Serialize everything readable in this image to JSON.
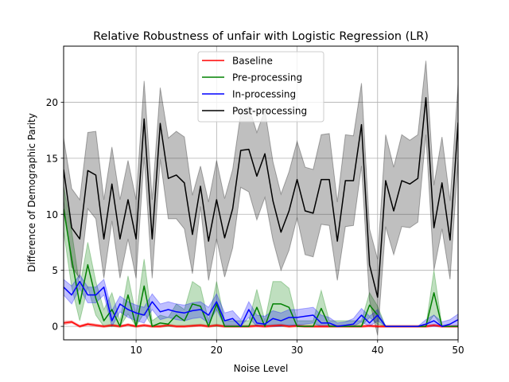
{
  "chart_data": {
    "type": "line",
    "title": "Relative Robustness of unfair with Logistic Regression (LR)",
    "xlabel": "Noise Level",
    "ylabel": "Difference of Demographic Parity",
    "xlim": [
      1,
      50
    ],
    "ylim": [
      -1.2,
      25
    ],
    "xticks": [
      10,
      20,
      30,
      40,
      50
    ],
    "yticks": [
      0,
      5,
      10,
      15,
      20
    ],
    "grid": true,
    "legend_position": "upper-center",
    "x": [
      1,
      2,
      3,
      4,
      5,
      6,
      7,
      8,
      9,
      10,
      11,
      12,
      13,
      14,
      15,
      16,
      17,
      18,
      19,
      20,
      21,
      22,
      23,
      24,
      25,
      26,
      27,
      28,
      29,
      30,
      31,
      32,
      33,
      34,
      35,
      36,
      37,
      38,
      39,
      40,
      41,
      42,
      43,
      44,
      45,
      46,
      47,
      48,
      49,
      50
    ],
    "series": [
      {
        "name": "Baseline",
        "color": "#ff0000",
        "values": [
          0.3,
          0.4,
          0.0,
          0.2,
          0.1,
          0.0,
          0.1,
          0.0,
          0.15,
          0.0,
          0.1,
          0.0,
          0.0,
          0.1,
          0.0,
          0.0,
          0.05,
          0.1,
          0.0,
          0.1,
          0.0,
          0.0,
          0.0,
          0.0,
          0.05,
          0.0,
          0.05,
          0.1,
          0.0,
          0.05,
          0.0,
          0.0,
          0.0,
          0.0,
          0.0,
          0.0,
          0.0,
          0.0,
          0.05,
          0.0,
          0.0,
          0.0,
          0.0,
          0.0,
          0.0,
          0.0,
          0.1,
          0.0,
          0.0,
          0.0
        ],
        "upper": [
          0.45,
          0.5,
          0.1,
          0.3,
          0.2,
          0.1,
          0.2,
          0.1,
          0.25,
          0.1,
          0.2,
          0.1,
          0.1,
          0.2,
          0.1,
          0.1,
          0.15,
          0.2,
          0.1,
          0.2,
          0.1,
          0.1,
          0.1,
          0.1,
          0.15,
          0.1,
          0.15,
          0.2,
          0.1,
          0.15,
          0.1,
          0.1,
          0.1,
          0.1,
          0.1,
          0.1,
          0.1,
          0.1,
          0.15,
          0.1,
          0.1,
          0.1,
          0.1,
          0.1,
          0.1,
          0.1,
          0.2,
          0.1,
          0.1,
          0.1
        ],
        "lower": [
          0.15,
          0.3,
          -0.1,
          0.1,
          0.0,
          -0.1,
          0.0,
          -0.1,
          0.05,
          -0.1,
          0.0,
          -0.1,
          -0.1,
          0.0,
          -0.1,
          -0.1,
          -0.05,
          0.0,
          -0.1,
          0.0,
          -0.1,
          -0.1,
          -0.1,
          -0.1,
          -0.05,
          -0.1,
          -0.05,
          0.0,
          -0.1,
          -0.05,
          -0.1,
          -0.1,
          -0.1,
          -0.1,
          -0.1,
          -0.1,
          -0.1,
          -0.1,
          -0.05,
          -0.1,
          -0.1,
          -0.1,
          -0.1,
          -0.1,
          -0.1,
          -0.1,
          0.0,
          -0.1,
          -0.1,
          -0.1
        ]
      },
      {
        "name": "Pre-processing",
        "color": "#008000",
        "values": [
          10.5,
          6.0,
          2.0,
          5.5,
          2.5,
          0.5,
          1.5,
          0.0,
          2.8,
          0.0,
          3.6,
          0.0,
          0.3,
          0.2,
          1.0,
          0.5,
          2.0,
          1.8,
          0.0,
          2.0,
          0.0,
          0.0,
          0.0,
          0.0,
          1.7,
          0.0,
          2.0,
          2.0,
          1.7,
          0.0,
          0.0,
          0.0,
          1.6,
          0.0,
          0.0,
          0.0,
          0.0,
          0.0,
          1.9,
          1.0,
          0.0,
          0.0,
          0.0,
          0.0,
          0.0,
          0.0,
          3.0,
          0.0,
          0.0,
          0.0
        ],
        "upper": [
          12.5,
          8.5,
          3.5,
          7.5,
          4.0,
          1.5,
          3.0,
          0.5,
          4.5,
          1.0,
          6.0,
          0.5,
          1.0,
          0.8,
          2.0,
          1.5,
          4.0,
          3.5,
          0.5,
          4.0,
          0.5,
          0.5,
          0.5,
          0.5,
          3.3,
          0.5,
          4.0,
          4.0,
          3.4,
          0.5,
          0.5,
          0.5,
          3.2,
          0.5,
          0.5,
          0.5,
          0.5,
          0.5,
          3.0,
          1.8,
          0.0,
          0.0,
          0.0,
          0.0,
          0.0,
          0.0,
          5.0,
          0.0,
          0.0,
          0.0
        ],
        "lower": [
          8.5,
          3.5,
          0.5,
          3.5,
          1.0,
          0.0,
          0.0,
          0.0,
          1.1,
          0.0,
          1.2,
          0.0,
          0.0,
          0.0,
          0.0,
          0.0,
          0.0,
          0.1,
          0.0,
          0.0,
          0.0,
          0.0,
          0.0,
          0.0,
          0.1,
          0.0,
          0.0,
          0.0,
          0.0,
          0.0,
          0.0,
          0.0,
          0.0,
          0.0,
          0.0,
          0.0,
          0.0,
          0.0,
          0.8,
          0.2,
          0.0,
          0.0,
          0.0,
          0.0,
          0.0,
          0.0,
          1.0,
          0.0,
          0.0,
          0.0
        ]
      },
      {
        "name": "In-processing",
        "color": "#0000ff",
        "values": [
          3.5,
          2.8,
          4.0,
          2.8,
          2.8,
          3.5,
          0.5,
          2.0,
          1.5,
          1.2,
          1.0,
          2.2,
          1.3,
          1.5,
          1.3,
          1.2,
          1.4,
          1.5,
          1.0,
          2.2,
          0.5,
          0.7,
          0.0,
          1.5,
          0.3,
          0.2,
          0.7,
          0.5,
          0.8,
          0.8,
          0.9,
          1.0,
          0.3,
          0.3,
          0.0,
          0.1,
          0.2,
          1.0,
          0.3,
          1.0,
          0.0,
          0.0,
          0.0,
          0.0,
          0.0,
          0.2,
          0.5,
          0.0,
          0.2,
          0.6
        ],
        "upper": [
          4.2,
          3.6,
          4.6,
          3.5,
          3.5,
          4.2,
          1.4,
          2.7,
          2.2,
          1.9,
          1.7,
          2.9,
          2.0,
          2.2,
          2.0,
          1.9,
          2.1,
          2.2,
          1.7,
          2.9,
          1.2,
          1.4,
          0.6,
          2.2,
          1.0,
          0.9,
          1.4,
          1.2,
          1.5,
          1.5,
          1.6,
          1.7,
          1.0,
          0.8,
          0.3,
          0.4,
          0.7,
          1.6,
          0.9,
          1.5,
          0.0,
          0.0,
          0.0,
          0.0,
          0.0,
          0.6,
          1.0,
          0.4,
          0.6,
          1.1
        ],
        "lower": [
          2.8,
          2.0,
          3.4,
          2.1,
          2.1,
          2.8,
          0.0,
          1.3,
          0.8,
          0.5,
          0.3,
          1.5,
          0.6,
          0.8,
          0.6,
          0.5,
          0.7,
          0.8,
          0.3,
          1.5,
          0.0,
          0.0,
          0.0,
          0.8,
          0.0,
          0.0,
          0.0,
          0.0,
          0.1,
          0.1,
          0.2,
          0.3,
          0.0,
          0.0,
          0.0,
          0.0,
          0.0,
          0.4,
          0.0,
          0.5,
          0.0,
          0.0,
          0.0,
          0.0,
          0.0,
          0.0,
          0.0,
          0.0,
          0.0,
          0.1
        ]
      },
      {
        "name": "Post-processing",
        "color": "#000000",
        "values": [
          14.0,
          8.8,
          7.8,
          13.9,
          13.5,
          7.8,
          12.7,
          7.8,
          11.3,
          7.8,
          18.5,
          7.8,
          18.1,
          13.2,
          13.5,
          12.8,
          8.2,
          12.5,
          7.6,
          11.3,
          7.9,
          10.5,
          15.7,
          15.8,
          13.4,
          15.4,
          11.2,
          8.4,
          10.3,
          13.1,
          10.3,
          10.1,
          13.1,
          13.1,
          7.6,
          13.0,
          13.0,
          18.0,
          5.5,
          2.6,
          13.0,
          10.3,
          13.0,
          12.7,
          13.2,
          20.4,
          8.8,
          12.8,
          7.7,
          18.2
        ],
        "upper": [
          16.8,
          12.3,
          11.3,
          17.3,
          17.4,
          11.3,
          16.0,
          11.3,
          14.8,
          11.3,
          21.9,
          11.3,
          21.3,
          16.8,
          17.4,
          16.9,
          11.7,
          14.3,
          11.1,
          14.8,
          11.4,
          14.0,
          19.0,
          19.6,
          17.3,
          19.3,
          14.7,
          11.8,
          13.8,
          16.5,
          14.2,
          14.0,
          17.1,
          17.2,
          11.1,
          17.1,
          17.0,
          21.7,
          8.7,
          6.0,
          17.1,
          14.2,
          17.1,
          16.6,
          17.1,
          23.7,
          12.6,
          16.9,
          11.2,
          21.6
        ],
        "lower": [
          11.2,
          5.3,
          4.3,
          10.5,
          9.6,
          4.3,
          9.4,
          4.3,
          7.8,
          4.3,
          15.1,
          4.3,
          14.9,
          9.6,
          9.6,
          8.7,
          4.7,
          10.7,
          4.1,
          7.8,
          4.4,
          7.0,
          12.4,
          12.0,
          9.5,
          11.5,
          7.7,
          5.0,
          6.8,
          9.7,
          6.4,
          6.2,
          9.1,
          9.0,
          4.1,
          8.9,
          9.0,
          14.3,
          2.3,
          -0.8,
          8.9,
          6.4,
          8.9,
          8.8,
          9.3,
          17.1,
          5.0,
          8.7,
          4.2,
          14.8
        ]
      }
    ]
  }
}
